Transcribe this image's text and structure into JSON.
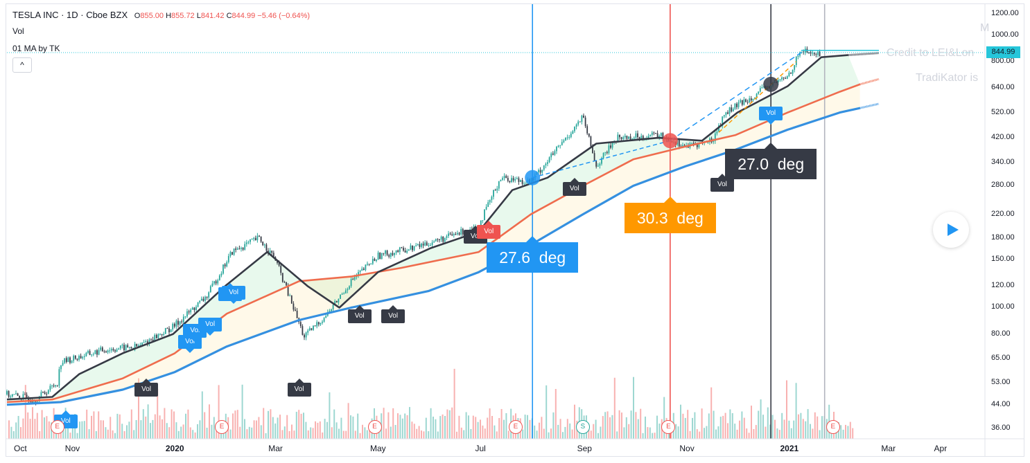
{
  "header": {
    "symbol": "TESLA INC · 1D · Cboe BZX",
    "open_label": "O",
    "open": "855.00",
    "high_label": "H",
    "high": "855.72",
    "low_label": "L",
    "low": "841.42",
    "close_label": "C",
    "close": "844.99",
    "change": "−5.46 (−0.64%)"
  },
  "indicators": {
    "vol": "Vol",
    "ma": "01 MA by TK"
  },
  "collapse_label": "^",
  "watermark": {
    "line1": "Credit to LEI&Lon",
    "line2": "TradiKator is",
    "corner": "M"
  },
  "last_price": "844.99",
  "colors": {
    "up": "#26a69a",
    "down": "#ef5350",
    "ma_fast": "#363a45",
    "ma_mid": "#ef6c4d",
    "ma_slow": "#3590e0",
    "blue_marker": "#2196f3",
    "orange_label": "#ff9800",
    "dark_label": "#363a45"
  },
  "chart_data": {
    "type": "line",
    "price_scale": "log",
    "ylim": [
      33,
      1300
    ],
    "y_ticks": [
      "1200.00",
      "1000.00",
      "800.00",
      "640.00",
      "520.00",
      "420.00",
      "340.00",
      "280.00",
      "220.00",
      "180.00",
      "150.00",
      "120.00",
      "100.00",
      "80.00",
      "65.00",
      "53.00",
      "44.00",
      "36.00"
    ],
    "x_ticks": [
      "Oct",
      "Nov",
      "2020",
      "Mar",
      "May",
      "Jul",
      "Sep",
      "Nov",
      "2021",
      "Mar",
      "Apr"
    ],
    "x_ticks_bold": [
      "2020",
      "2021"
    ],
    "price_path": [
      [
        "2019-09-23",
        48
      ],
      [
        "2019-10-10",
        46
      ],
      [
        "2019-10-23",
        53
      ],
      [
        "2019-10-25",
        63
      ],
      [
        "2019-11-20",
        70
      ],
      [
        "2019-12-10",
        72
      ],
      [
        "2019-12-31",
        85
      ],
      [
        "2020-01-20",
        110
      ],
      [
        "2020-02-04",
        160
      ],
      [
        "2020-02-20",
        180
      ],
      [
        "2020-03-01",
        150
      ],
      [
        "2020-03-18",
        78
      ],
      [
        "2020-04-01",
        95
      ],
      [
        "2020-04-15",
        125
      ],
      [
        "2020-05-01",
        155
      ],
      [
        "2020-05-20",
        165
      ],
      [
        "2020-06-10",
        180
      ],
      [
        "2020-06-30",
        200
      ],
      [
        "2020-07-13",
        300
      ],
      [
        "2020-07-31",
        290
      ],
      [
        "2020-08-31",
        500
      ],
      [
        "2020-09-08",
        330
      ],
      [
        "2020-09-20",
        420
      ],
      [
        "2020-10-15",
        430
      ],
      [
        "2020-11-01",
        390
      ],
      [
        "2020-11-16",
        410
      ],
      [
        "2020-11-24",
        520
      ],
      [
        "2020-12-18",
        640
      ],
      [
        "2020-12-31",
        705
      ],
      [
        "2021-01-08",
        880
      ],
      [
        "2021-01-20",
        845
      ]
    ],
    "ma_fast": [
      [
        "2019-09-23",
        46
      ],
      [
        "2019-10-20",
        47
      ],
      [
        "2019-11-05",
        57
      ],
      [
        "2019-12-01",
        68
      ],
      [
        "2019-12-31",
        80
      ],
      [
        "2020-01-31",
        120
      ],
      [
        "2020-02-25",
        160
      ],
      [
        "2020-03-20",
        120
      ],
      [
        "2020-04-08",
        100
      ],
      [
        "2020-05-01",
        135
      ],
      [
        "2020-06-01",
        165
      ],
      [
        "2020-06-30",
        190
      ],
      [
        "2020-07-20",
        270
      ],
      [
        "2020-08-10",
        300
      ],
      [
        "2020-09-08",
        400
      ],
      [
        "2020-10-15",
        420
      ],
      [
        "2020-11-10",
        410
      ],
      [
        "2020-12-01",
        520
      ],
      [
        "2020-12-31",
        650
      ],
      [
        "2021-01-20",
        830
      ],
      [
        "2021-02-05",
        845
      ]
    ],
    "ma_mid": [
      [
        "2019-09-23",
        45
      ],
      [
        "2019-10-20",
        46
      ],
      [
        "2019-12-01",
        55
      ],
      [
        "2020-01-01",
        68
      ],
      [
        "2020-02-01",
        95
      ],
      [
        "2020-03-15",
        125
      ],
      [
        "2020-04-15",
        130
      ],
      [
        "2020-05-15",
        140
      ],
      [
        "2020-06-30",
        160
      ],
      [
        "2020-07-31",
        220
      ],
      [
        "2020-08-31",
        280
      ],
      [
        "2020-09-30",
        350
      ],
      [
        "2020-10-31",
        390
      ],
      [
        "2020-11-30",
        430
      ],
      [
        "2020-12-31",
        520
      ],
      [
        "2021-01-31",
        620
      ],
      [
        "2021-02-12",
        660
      ]
    ],
    "ma_slow": [
      [
        "2019-09-23",
        44
      ],
      [
        "2019-10-25",
        45
      ],
      [
        "2019-12-01",
        50
      ],
      [
        "2020-01-01",
        58
      ],
      [
        "2020-02-01",
        72
      ],
      [
        "2020-03-15",
        90
      ],
      [
        "2020-04-15",
        100
      ],
      [
        "2020-05-31",
        115
      ],
      [
        "2020-06-30",
        135
      ],
      [
        "2020-07-31",
        170
      ],
      [
        "2020-08-31",
        220
      ],
      [
        "2020-09-30",
        280
      ],
      [
        "2020-10-31",
        330
      ],
      [
        "2020-11-30",
        380
      ],
      [
        "2020-12-31",
        450
      ],
      [
        "2021-01-31",
        520
      ],
      [
        "2021-02-12",
        540
      ]
    ],
    "vertical_lines": [
      {
        "date": "2020-08-01",
        "color": "#2196f3"
      },
      {
        "date": "2020-10-22",
        "color": "#ef5350"
      },
      {
        "date": "2020-12-21",
        "color": "#363a45"
      },
      {
        "date": "2021-01-22",
        "color": "#b2b5be"
      }
    ],
    "angle_labels": [
      {
        "text": "27.6  deg",
        "date": "2020-08-01",
        "color": "#2196f3"
      },
      {
        "text": "30.3  deg",
        "date": "2020-10-22",
        "color": "#ff9800"
      },
      {
        "text": "27.0  deg",
        "date": "2020-12-21",
        "color": "#363a45"
      }
    ],
    "markers": [
      {
        "date": "2020-08-01",
        "price": 300,
        "color": "#2196f3"
      },
      {
        "date": "2020-10-22",
        "price": 410,
        "color": "#ef5350"
      },
      {
        "date": "2020-12-21",
        "price": 660,
        "color": "#363a45"
      }
    ],
    "vol_labels": [
      {
        "text": "Vol",
        "date": "2019-10-28",
        "price": 42,
        "style": "blue",
        "dir": "dn"
      },
      {
        "text": "Vol",
        "date": "2019-12-15",
        "price": 55,
        "style": "dark",
        "dir": "dn"
      },
      {
        "text": "Vol",
        "date": "2020-01-10",
        "price": 68,
        "style": "blue",
        "dir": "up"
      },
      {
        "text": "Vol",
        "date": "2020-01-13",
        "price": 75,
        "style": "blue",
        "dir": "up"
      },
      {
        "text": "Vol",
        "date": "2020-01-22",
        "price": 79,
        "style": "blue",
        "dir": "up"
      },
      {
        "text": "Vol",
        "date": "2020-02-03",
        "price": 123,
        "style": "blue",
        "dir": "dn"
      },
      {
        "text": "Vol",
        "date": "2020-02-05",
        "price": 103,
        "style": "blue",
        "dir": "up"
      },
      {
        "text": "Vol",
        "date": "2020-03-15",
        "price": 55,
        "style": "dark",
        "dir": "dn"
      },
      {
        "text": "Vol",
        "date": "2020-04-20",
        "price": 102,
        "style": "dark",
        "dir": "dn"
      },
      {
        "text": "Vol",
        "date": "2020-05-10",
        "price": 102,
        "style": "dark",
        "dir": "dn"
      },
      {
        "text": "Vol",
        "date": "2020-06-28",
        "price": 200,
        "style": "dark",
        "dir": "dn"
      },
      {
        "text": "Vol",
        "date": "2020-07-06",
        "price": 208,
        "style": "red",
        "dir": "dn"
      },
      {
        "text": "Vol",
        "date": "2020-08-26",
        "price": 300,
        "style": "dark",
        "dir": "dn"
      },
      {
        "text": "Vol",
        "date": "2020-11-22",
        "price": 310,
        "style": "dark",
        "dir": "dn"
      },
      {
        "text": "Vol",
        "date": "2020-12-21",
        "price": 470,
        "style": "blue",
        "dir": "up"
      }
    ],
    "earnings_markers": [
      {
        "date": "2019-10-23",
        "text": "E"
      },
      {
        "date": "2020-01-29",
        "text": "E"
      },
      {
        "date": "2020-04-29",
        "text": "E"
      },
      {
        "date": "2020-07-22",
        "text": "E"
      },
      {
        "date": "2020-08-31",
        "text": "S"
      },
      {
        "date": "2020-10-21",
        "text": "E"
      },
      {
        "date": "2021-01-27",
        "text": "E"
      }
    ]
  }
}
